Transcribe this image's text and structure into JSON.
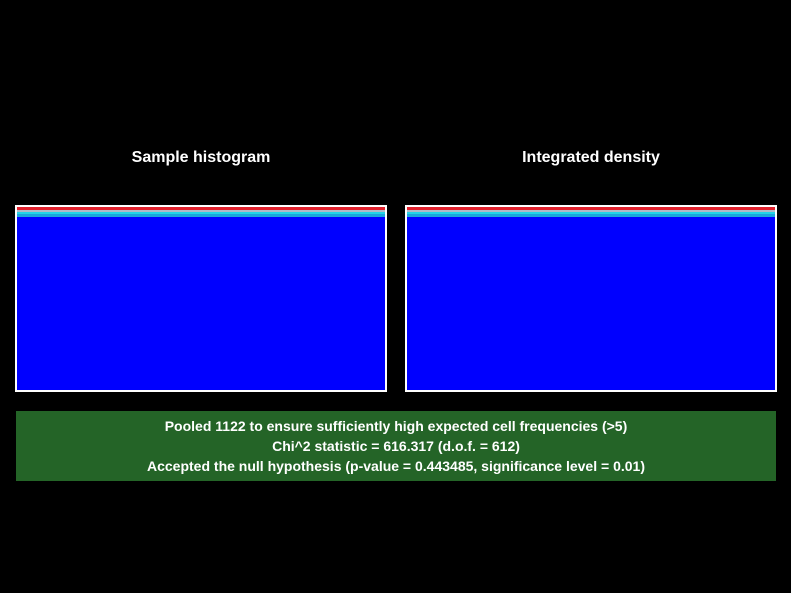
{
  "panels": {
    "left_title": "Sample histogram",
    "right_title": "Integrated density"
  },
  "colors": {
    "background": "#000000",
    "plot_fill": "#0000ff",
    "band_top": "#e0202c",
    "band_second": "#b0b8c8",
    "band_third": "#22d3e8",
    "band_fourth": "#1aa6dc",
    "result_box": "#246427"
  },
  "result": {
    "line1": "Pooled 1122 to ensure sufficiently high expected cell frequencies (>5)",
    "line2": "Chi^2 statistic = 616.317 (d.o.f. = 612)",
    "line3": "Accepted the null hypothesis (p-value = 0.443485, significance level = 0.01)"
  }
}
